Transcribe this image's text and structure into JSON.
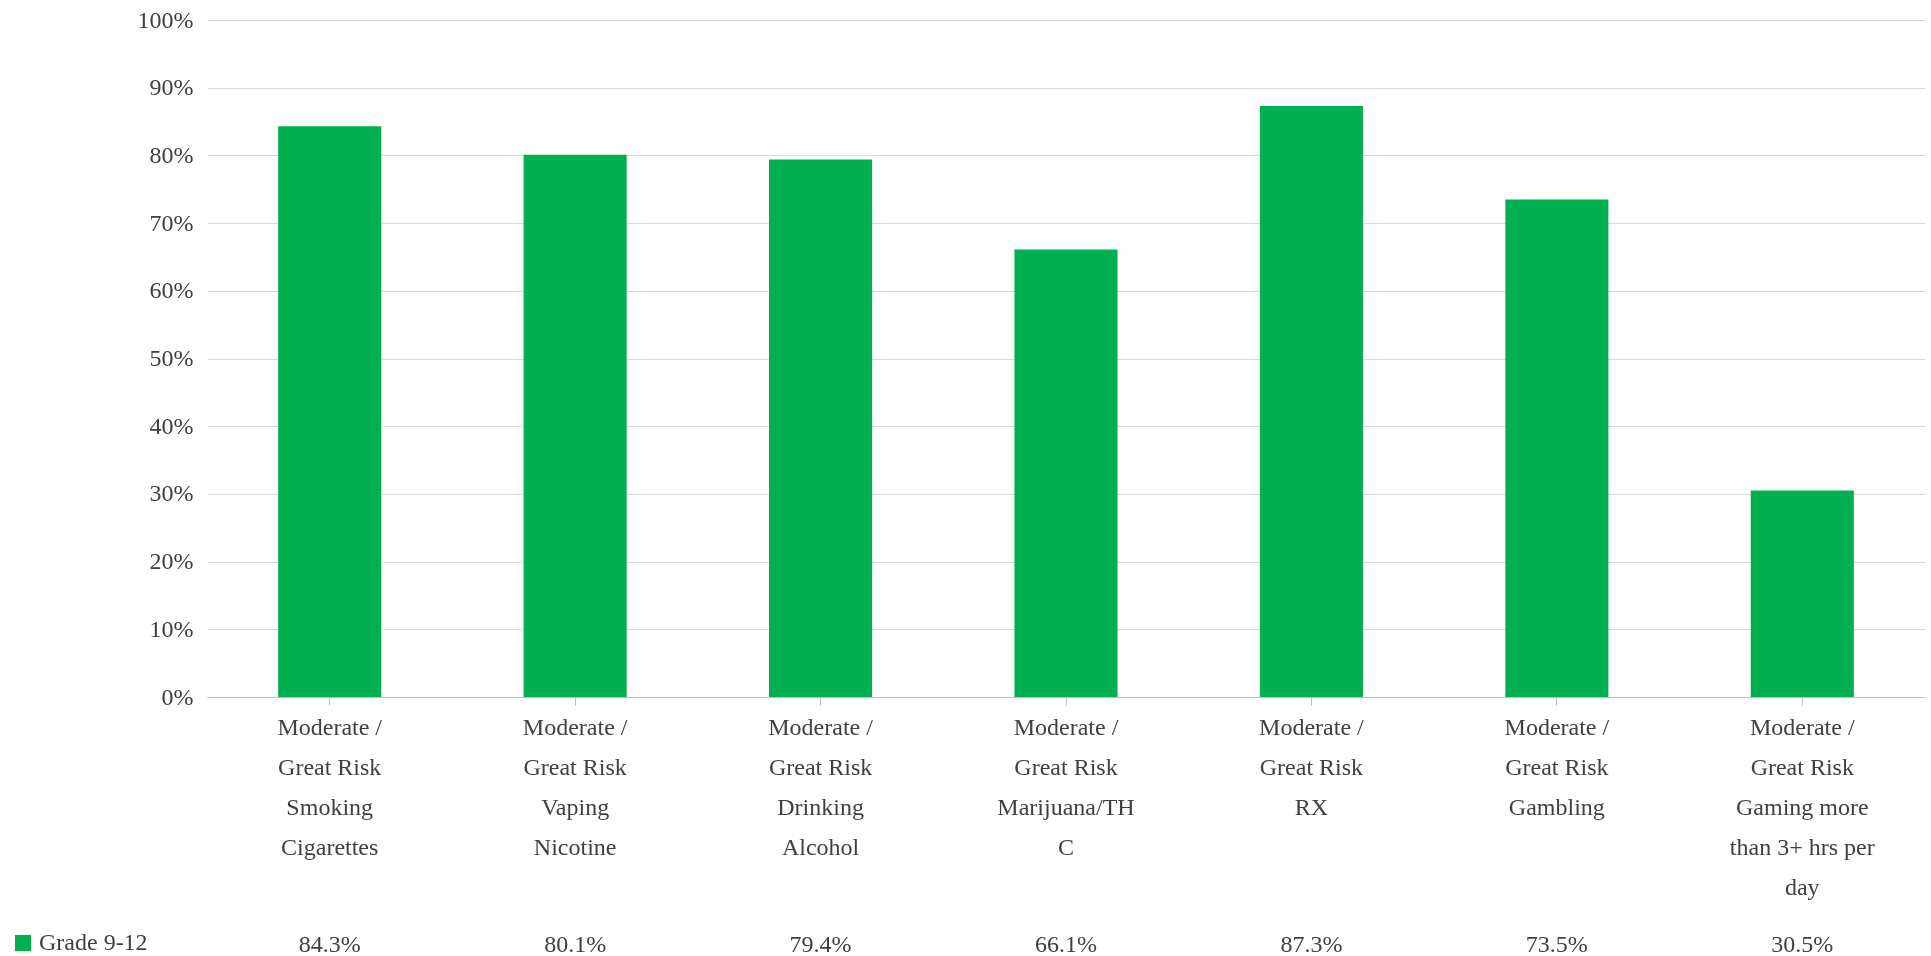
{
  "chart_data": {
    "type": "bar",
    "categories": [
      "Moderate /\nGreat Risk\n\nSmoking\nCigarettes",
      "Moderate /\nGreat Risk\n\nVaping\nNicotine",
      "Moderate /\nGreat Risk\n\nDrinking\nAlcohol",
      "Moderate /\nGreat Risk\n\nMarijuana/TH\nC",
      "Moderate /\nGreat Risk\n\nRX",
      "Moderate /\nGreat Risk\n\nGambling",
      "Moderate /\nGreat Risk\n\nGaming more\nthan 3+ hrs per\nday"
    ],
    "series": [
      {
        "name": "Grade  9-12",
        "color": "#00b050",
        "values": [
          84.3,
          80.1,
          79.4,
          66.1,
          87.3,
          73.5,
          30.5
        ],
        "value_labels": [
          "84.3%",
          "80.1%",
          "79.4%",
          "66.1%",
          "87.3%",
          "73.5%",
          "30.5%"
        ]
      }
    ],
    "ylim": [
      0,
      100
    ],
    "yticks": [
      {
        "value": 0,
        "label": "0%"
      },
      {
        "value": 10,
        "label": "10%"
      },
      {
        "value": 20,
        "label": "20%"
      },
      {
        "value": 30,
        "label": "30%"
      },
      {
        "value": 40,
        "label": "40%"
      },
      {
        "value": 50,
        "label": "50%"
      },
      {
        "value": 60,
        "label": "60%"
      },
      {
        "value": 70,
        "label": "70%"
      },
      {
        "value": 80,
        "label": "80%"
      },
      {
        "value": 90,
        "label": "90%"
      },
      {
        "value": 100,
        "label": "100%"
      }
    ],
    "grid": "y",
    "legend": "bottom left"
  }
}
